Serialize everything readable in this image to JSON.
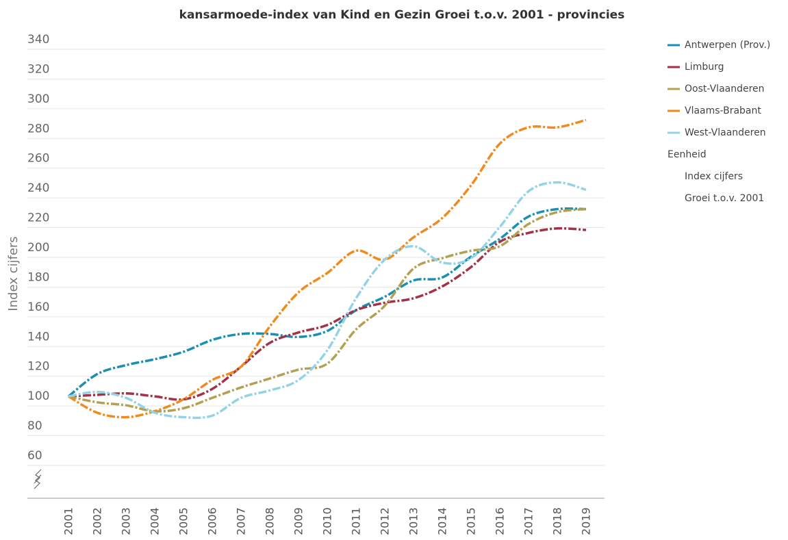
{
  "chart_data": {
    "type": "line",
    "title": "kansarmoede-index van Kind en Gezin Groei t.o.v. 2001 - provincies",
    "y_label": "Index cijfers",
    "categories": [
      "2001",
      "2002",
      "2003",
      "2004",
      "2005",
      "2006",
      "2007",
      "2008",
      "2009",
      "2010",
      "2011",
      "2012",
      "2013",
      "2014",
      "2015",
      "2016",
      "2017",
      "2018",
      "2019"
    ],
    "series": [
      {
        "name": "Antwerpen (Prov.)",
        "color": "#1a8fb0",
        "values": [
          100,
          115,
          121,
          125,
          130,
          138,
          142,
          142,
          140,
          144,
          158,
          167,
          178,
          180,
          194,
          206,
          221,
          226,
          226
        ]
      },
      {
        "name": "Limburg",
        "color": "#a33147",
        "values": [
          100,
          101,
          102,
          100,
          98,
          105,
          120,
          136,
          143,
          148,
          158,
          163,
          166,
          174,
          187,
          204,
          210,
          213,
          212
        ]
      },
      {
        "name": "Oost-Vlaanderen",
        "color": "#b3a050",
        "values": [
          100,
          96,
          94,
          90,
          92,
          99,
          106,
          112,
          118,
          122,
          145,
          161,
          186,
          193,
          198,
          201,
          216,
          224,
          226
        ]
      },
      {
        "name": "Vlaams-Brabant",
        "color": "#f08a1e",
        "values": [
          100,
          89,
          86,
          90,
          98,
          111,
          120,
          147,
          170,
          183,
          198,
          192,
          207,
          220,
          242,
          270,
          281,
          281,
          286
        ]
      },
      {
        "name": "West-Vlaanderen",
        "color": "#94d3e6",
        "values": [
          100,
          103,
          99,
          89,
          86,
          87,
          99,
          104,
          111,
          131,
          166,
          192,
          201,
          190,
          193,
          214,
          238,
          244,
          239
        ]
      }
    ],
    "legend_unit": {
      "title": "Eenheid",
      "items": [
        "Index cijfers",
        "Groei t.o.v. 2001"
      ]
    },
    "ylim": [
      60,
      340
    ],
    "yticks": [
      60,
      80,
      100,
      120,
      140,
      160,
      180,
      200,
      220,
      240,
      260,
      280,
      300,
      320,
      340
    ],
    "grid": true,
    "legend": "right"
  }
}
